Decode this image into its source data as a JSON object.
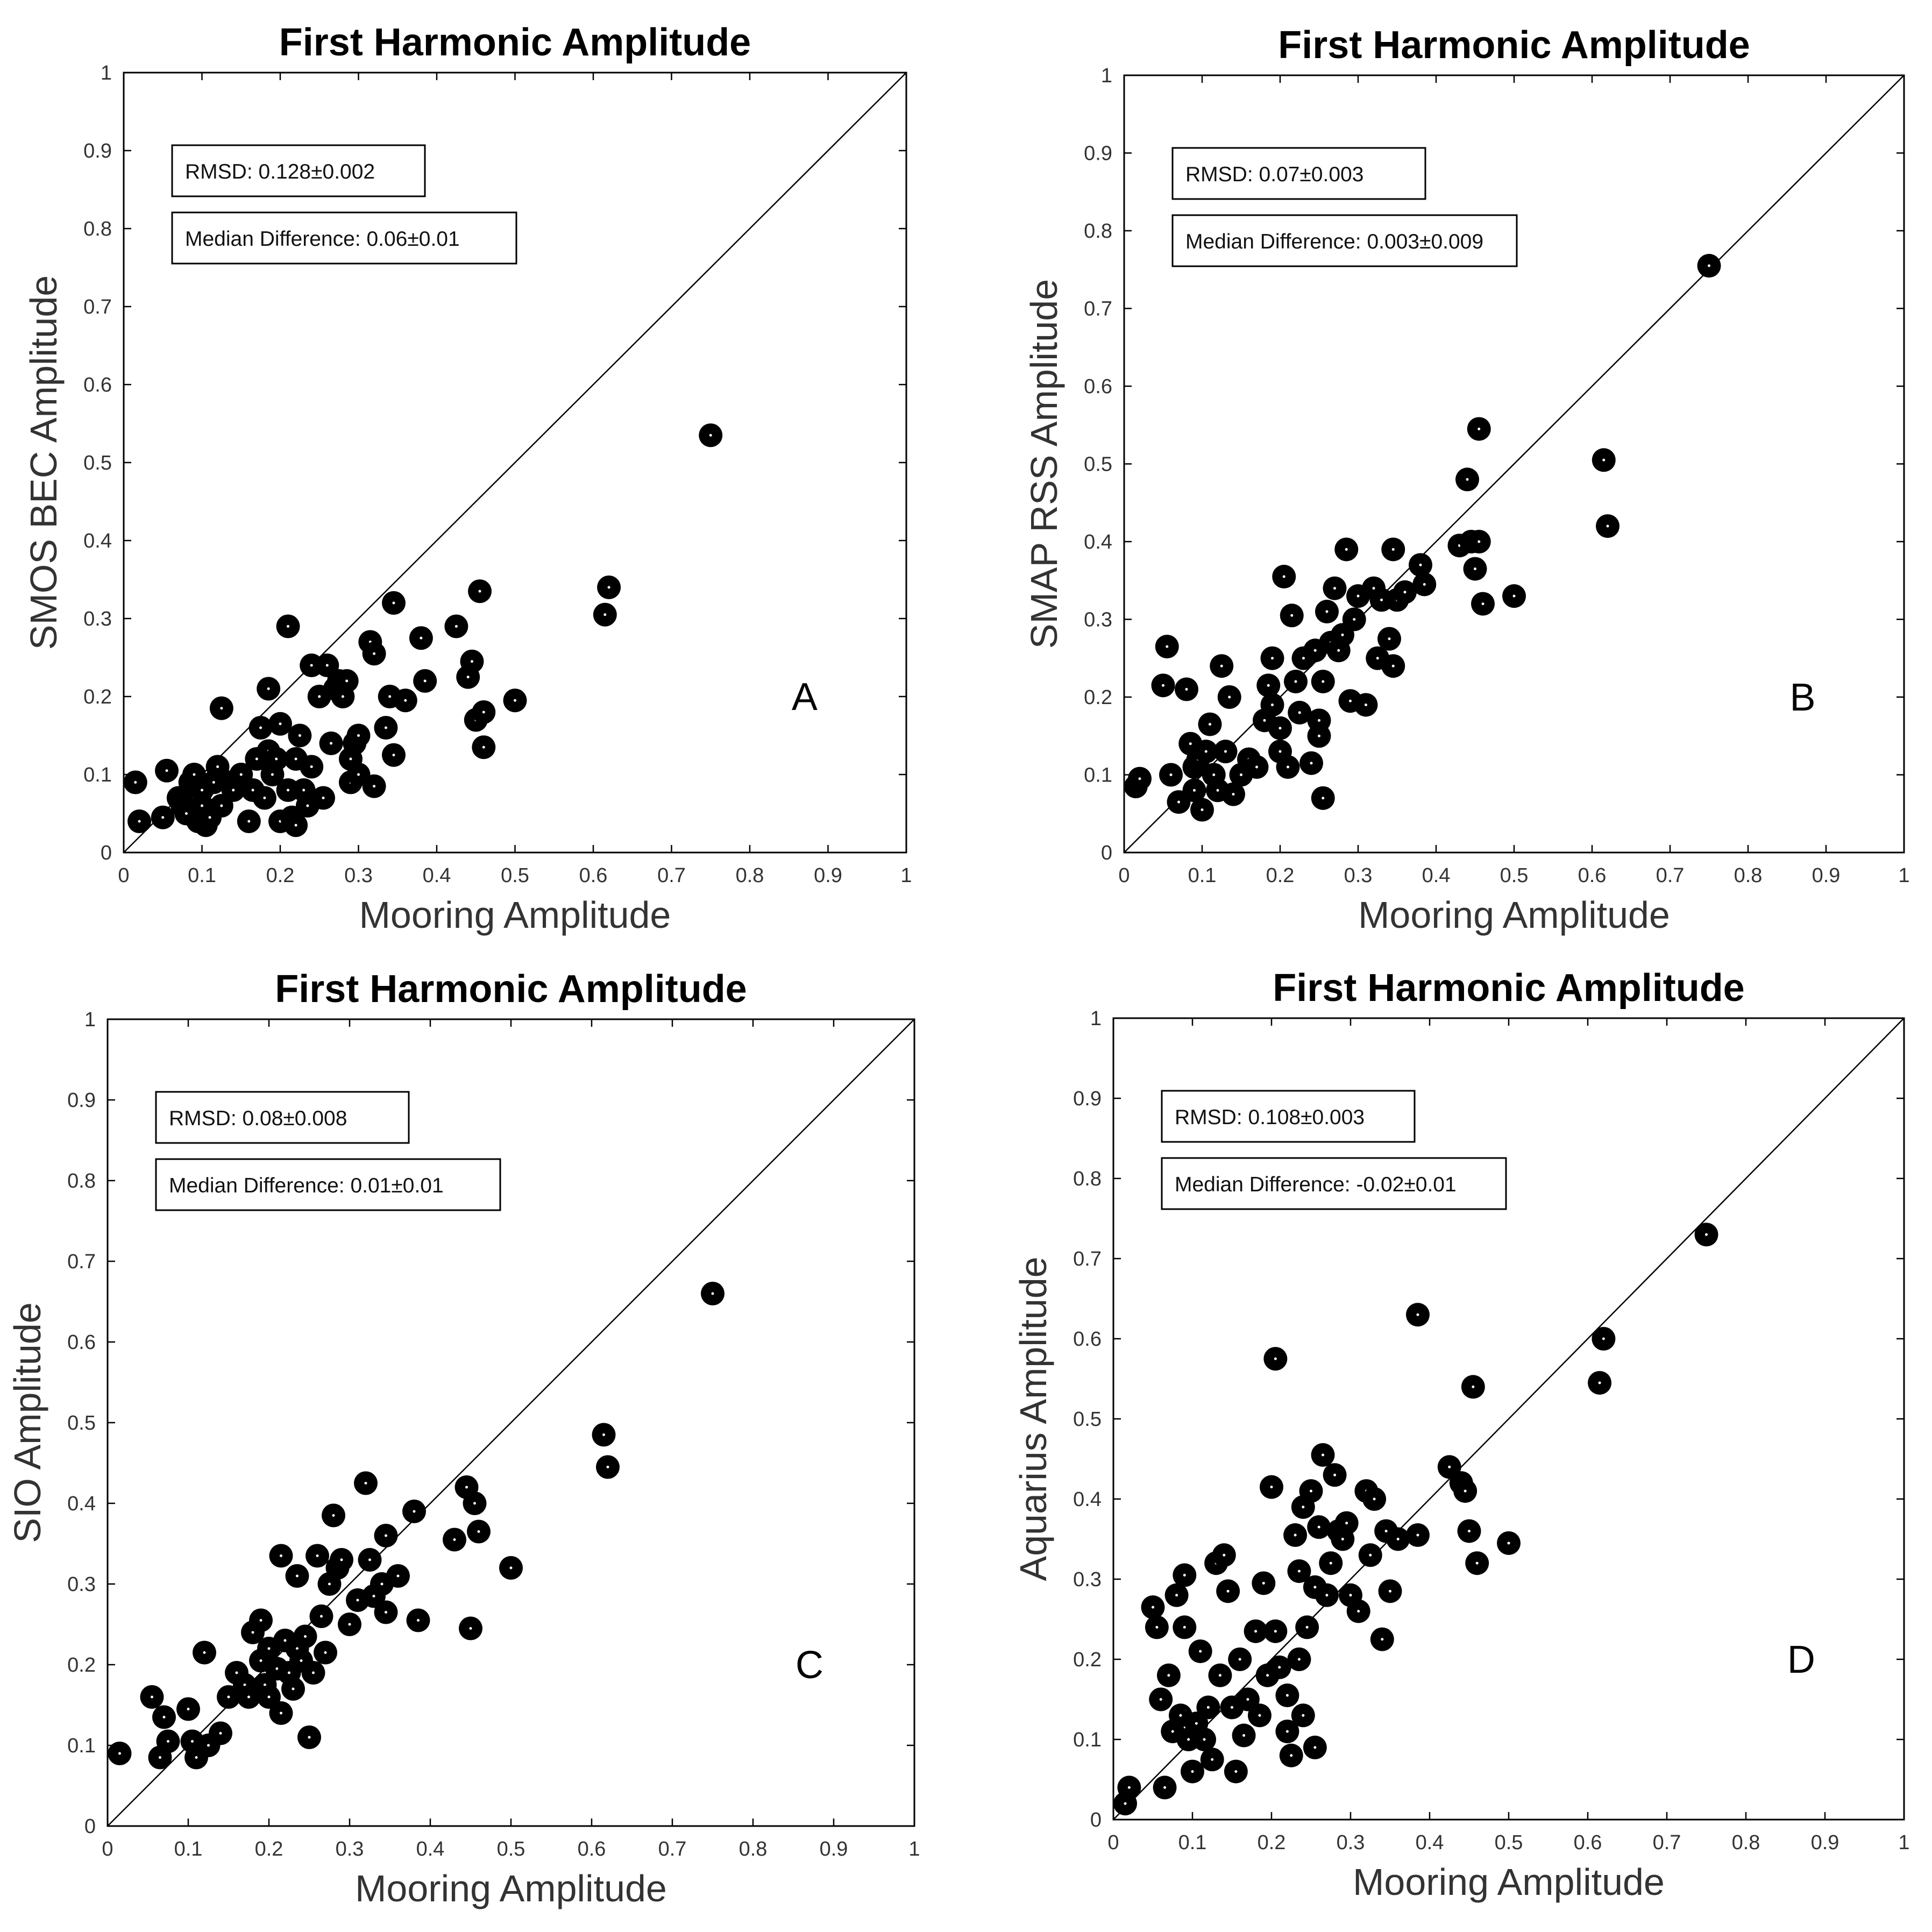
{
  "colors": {
    "marker": "#000000",
    "marker_center": "#ffffff",
    "axis": "#000000",
    "background": "#ffffff"
  },
  "chart_data": [
    {
      "type": "scatter",
      "panel_letter": "A",
      "title": "First Harmonic Amplitude",
      "xlabel": "Mooring Amplitude",
      "ylabel": "SMOS BEC Amplitude",
      "xlim": [
        0,
        1
      ],
      "ylim": [
        0,
        1
      ],
      "ticks": [
        "0",
        "0.1",
        "0.2",
        "0.3",
        "0.4",
        "0.5",
        "0.6",
        "0.7",
        "0.8",
        "0.9",
        "1"
      ],
      "stats": {
        "rmsd": "RMSD: 0.128±0.002",
        "median": "Median Difference: 0.06±0.01"
      },
      "reference_line": "y = x",
      "points": [
        [
          0.015,
          0.09
        ],
        [
          0.02,
          0.04
        ],
        [
          0.05,
          0.045
        ],
        [
          0.055,
          0.105
        ],
        [
          0.07,
          0.07
        ],
        [
          0.075,
          0.06
        ],
        [
          0.08,
          0.05
        ],
        [
          0.085,
          0.09
        ],
        [
          0.09,
          0.07
        ],
        [
          0.09,
          0.1
        ],
        [
          0.095,
          0.04
        ],
        [
          0.1,
          0.08
        ],
        [
          0.1,
          0.06
        ],
        [
          0.105,
          0.035
        ],
        [
          0.11,
          0.045
        ],
        [
          0.115,
          0.09
        ],
        [
          0.12,
          0.11
        ],
        [
          0.125,
          0.06
        ],
        [
          0.125,
          0.185
        ],
        [
          0.135,
          0.09
        ],
        [
          0.14,
          0.08
        ],
        [
          0.15,
          0.1
        ],
        [
          0.16,
          0.04
        ],
        [
          0.165,
          0.08
        ],
        [
          0.17,
          0.12
        ],
        [
          0.175,
          0.16
        ],
        [
          0.18,
          0.07
        ],
        [
          0.185,
          0.13
        ],
        [
          0.185,
          0.21
        ],
        [
          0.19,
          0.1
        ],
        [
          0.195,
          0.12
        ],
        [
          0.2,
          0.04
        ],
        [
          0.2,
          0.165
        ],
        [
          0.21,
          0.29
        ],
        [
          0.21,
          0.08
        ],
        [
          0.215,
          0.045
        ],
        [
          0.22,
          0.12
        ],
        [
          0.22,
          0.035
        ],
        [
          0.225,
          0.15
        ],
        [
          0.23,
          0.08
        ],
        [
          0.235,
          0.06
        ],
        [
          0.24,
          0.24
        ],
        [
          0.24,
          0.11
        ],
        [
          0.25,
          0.2
        ],
        [
          0.255,
          0.07
        ],
        [
          0.26,
          0.24
        ],
        [
          0.265,
          0.14
        ],
        [
          0.27,
          0.21
        ],
        [
          0.275,
          0.22
        ],
        [
          0.28,
          0.2
        ],
        [
          0.285,
          0.22
        ],
        [
          0.29,
          0.09
        ],
        [
          0.29,
          0.12
        ],
        [
          0.295,
          0.14
        ],
        [
          0.3,
          0.1
        ],
        [
          0.3,
          0.15
        ],
        [
          0.315,
          0.27
        ],
        [
          0.32,
          0.085
        ],
        [
          0.32,
          0.255
        ],
        [
          0.335,
          0.16
        ],
        [
          0.34,
          0.2
        ],
        [
          0.345,
          0.32
        ],
        [
          0.345,
          0.125
        ],
        [
          0.36,
          0.195
        ],
        [
          0.38,
          0.275
        ],
        [
          0.385,
          0.22
        ],
        [
          0.425,
          0.29
        ],
        [
          0.44,
          0.225
        ],
        [
          0.445,
          0.245
        ],
        [
          0.45,
          0.17
        ],
        [
          0.455,
          0.335
        ],
        [
          0.46,
          0.135
        ],
        [
          0.46,
          0.18
        ],
        [
          0.5,
          0.195
        ],
        [
          0.615,
          0.305
        ],
        [
          0.62,
          0.34
        ],
        [
          0.75,
          0.535
        ]
      ]
    },
    {
      "type": "scatter",
      "panel_letter": "B",
      "title": "First Harmonic Amplitude",
      "xlabel": "Mooring Amplitude",
      "ylabel": "SMAP RSS Amplitude",
      "xlim": [
        0,
        1
      ],
      "ylim": [
        0,
        1
      ],
      "ticks": [
        "0",
        "0.1",
        "0.2",
        "0.3",
        "0.4",
        "0.5",
        "0.6",
        "0.7",
        "0.8",
        "0.9",
        "1"
      ],
      "stats": {
        "rmsd": "RMSD: 0.07±0.003",
        "median": "Median Difference: 0.003±0.009"
      },
      "reference_line": "y = x",
      "points": [
        [
          0.015,
          0.085
        ],
        [
          0.02,
          0.095
        ],
        [
          0.05,
          0.215
        ],
        [
          0.055,
          0.265
        ],
        [
          0.06,
          0.1
        ],
        [
          0.07,
          0.065
        ],
        [
          0.08,
          0.21
        ],
        [
          0.085,
          0.14
        ],
        [
          0.09,
          0.11
        ],
        [
          0.09,
          0.08
        ],
        [
          0.095,
          0.12
        ],
        [
          0.1,
          0.055
        ],
        [
          0.105,
          0.13
        ],
        [
          0.11,
          0.165
        ],
        [
          0.115,
          0.1
        ],
        [
          0.12,
          0.08
        ],
        [
          0.125,
          0.24
        ],
        [
          0.13,
          0.13
        ],
        [
          0.135,
          0.2
        ],
        [
          0.14,
          0.075
        ],
        [
          0.15,
          0.1
        ],
        [
          0.16,
          0.12
        ],
        [
          0.17,
          0.11
        ],
        [
          0.18,
          0.17
        ],
        [
          0.185,
          0.215
        ],
        [
          0.19,
          0.19
        ],
        [
          0.19,
          0.25
        ],
        [
          0.2,
          0.16
        ],
        [
          0.2,
          0.13
        ],
        [
          0.205,
          0.355
        ],
        [
          0.21,
          0.11
        ],
        [
          0.215,
          0.305
        ],
        [
          0.22,
          0.22
        ],
        [
          0.225,
          0.18
        ],
        [
          0.23,
          0.25
        ],
        [
          0.24,
          0.115
        ],
        [
          0.245,
          0.26
        ],
        [
          0.25,
          0.17
        ],
        [
          0.25,
          0.15
        ],
        [
          0.255,
          0.07
        ],
        [
          0.255,
          0.22
        ],
        [
          0.26,
          0.31
        ],
        [
          0.265,
          0.27
        ],
        [
          0.27,
          0.34
        ],
        [
          0.275,
          0.26
        ],
        [
          0.28,
          0.28
        ],
        [
          0.285,
          0.39
        ],
        [
          0.29,
          0.195
        ],
        [
          0.295,
          0.3
        ],
        [
          0.3,
          0.33
        ],
        [
          0.31,
          0.19
        ],
        [
          0.32,
          0.34
        ],
        [
          0.325,
          0.25
        ],
        [
          0.33,
          0.325
        ],
        [
          0.34,
          0.275
        ],
        [
          0.345,
          0.39
        ],
        [
          0.345,
          0.24
        ],
        [
          0.35,
          0.325
        ],
        [
          0.36,
          0.335
        ],
        [
          0.38,
          0.37
        ],
        [
          0.385,
          0.345
        ],
        [
          0.43,
          0.395
        ],
        [
          0.44,
          0.48
        ],
        [
          0.445,
          0.4
        ],
        [
          0.45,
          0.365
        ],
        [
          0.455,
          0.545
        ],
        [
          0.455,
          0.4
        ],
        [
          0.46,
          0.32
        ],
        [
          0.5,
          0.33
        ],
        [
          0.615,
          0.505
        ],
        [
          0.62,
          0.42
        ],
        [
          0.75,
          0.755
        ]
      ]
    },
    {
      "type": "scatter",
      "panel_letter": "C",
      "title": "First Harmonic Amplitude",
      "xlabel": "Mooring Amplitude",
      "ylabel": "SIO Amplitude",
      "xlim": [
        0,
        1
      ],
      "ylim": [
        0,
        1
      ],
      "ticks": [
        "0",
        "0.1",
        "0.2",
        "0.3",
        "0.4",
        "0.5",
        "0.6",
        "0.7",
        "0.8",
        "0.9",
        "1"
      ],
      "stats": {
        "rmsd": "RMSD: 0.08±0.008",
        "median": "Median Difference: 0.01±0.01"
      },
      "reference_line": "y = x",
      "points": [
        [
          0.015,
          0.09
        ],
        [
          0.055,
          0.16
        ],
        [
          0.065,
          0.085
        ],
        [
          0.07,
          0.135
        ],
        [
          0.075,
          0.105
        ],
        [
          0.1,
          0.145
        ],
        [
          0.105,
          0.105
        ],
        [
          0.11,
          0.085
        ],
        [
          0.12,
          0.215
        ],
        [
          0.125,
          0.1
        ],
        [
          0.14,
          0.115
        ],
        [
          0.15,
          0.16
        ],
        [
          0.16,
          0.19
        ],
        [
          0.17,
          0.175
        ],
        [
          0.175,
          0.16
        ],
        [
          0.18,
          0.24
        ],
        [
          0.19,
          0.205
        ],
        [
          0.19,
          0.255
        ],
        [
          0.195,
          0.175
        ],
        [
          0.2,
          0.22
        ],
        [
          0.2,
          0.16
        ],
        [
          0.21,
          0.195
        ],
        [
          0.215,
          0.335
        ],
        [
          0.215,
          0.14
        ],
        [
          0.22,
          0.23
        ],
        [
          0.225,
          0.19
        ],
        [
          0.23,
          0.17
        ],
        [
          0.235,
          0.31
        ],
        [
          0.235,
          0.22
        ],
        [
          0.24,
          0.205
        ],
        [
          0.245,
          0.235
        ],
        [
          0.25,
          0.11
        ],
        [
          0.255,
          0.19
        ],
        [
          0.26,
          0.335
        ],
        [
          0.265,
          0.26
        ],
        [
          0.27,
          0.215
        ],
        [
          0.275,
          0.3
        ],
        [
          0.28,
          0.385
        ],
        [
          0.285,
          0.32
        ],
        [
          0.29,
          0.33
        ],
        [
          0.3,
          0.25
        ],
        [
          0.31,
          0.28
        ],
        [
          0.32,
          0.425
        ],
        [
          0.325,
          0.33
        ],
        [
          0.33,
          0.285
        ],
        [
          0.34,
          0.3
        ],
        [
          0.345,
          0.265
        ],
        [
          0.345,
          0.36
        ],
        [
          0.36,
          0.31
        ],
        [
          0.38,
          0.39
        ],
        [
          0.385,
          0.255
        ],
        [
          0.43,
          0.355
        ],
        [
          0.445,
          0.42
        ],
        [
          0.45,
          0.245
        ],
        [
          0.455,
          0.4
        ],
        [
          0.46,
          0.365
        ],
        [
          0.5,
          0.32
        ],
        [
          0.615,
          0.485
        ],
        [
          0.62,
          0.445
        ],
        [
          0.75,
          0.66
        ]
      ]
    },
    {
      "type": "scatter",
      "panel_letter": "D",
      "title": "First Harmonic Amplitude",
      "xlabel": "Mooring Amplitude",
      "ylabel": "Aquarius Amplitude",
      "xlim": [
        0,
        1
      ],
      "ylim": [
        0,
        1
      ],
      "ticks": [
        "0",
        "0.1",
        "0.2",
        "0.3",
        "0.4",
        "0.5",
        "0.6",
        "0.7",
        "0.8",
        "0.9",
        "1"
      ],
      "stats": {
        "rmsd": "RMSD: 0.108±0.003",
        "median": "Median Difference: -0.02±0.01"
      },
      "reference_line": "y = x",
      "points": [
        [
          0.015,
          0.02
        ],
        [
          0.02,
          0.04
        ],
        [
          0.05,
          0.265
        ],
        [
          0.055,
          0.24
        ],
        [
          0.06,
          0.15
        ],
        [
          0.065,
          0.04
        ],
        [
          0.07,
          0.18
        ],
        [
          0.075,
          0.11
        ],
        [
          0.08,
          0.28
        ],
        [
          0.085,
          0.13
        ],
        [
          0.09,
          0.305
        ],
        [
          0.09,
          0.24
        ],
        [
          0.095,
          0.1
        ],
        [
          0.1,
          0.06
        ],
        [
          0.105,
          0.12
        ],
        [
          0.11,
          0.21
        ],
        [
          0.115,
          0.1
        ],
        [
          0.12,
          0.14
        ],
        [
          0.125,
          0.075
        ],
        [
          0.13,
          0.32
        ],
        [
          0.135,
          0.18
        ],
        [
          0.14,
          0.33
        ],
        [
          0.145,
          0.285
        ],
        [
          0.15,
          0.14
        ],
        [
          0.155,
          0.06
        ],
        [
          0.16,
          0.2
        ],
        [
          0.165,
          0.105
        ],
        [
          0.17,
          0.15
        ],
        [
          0.18,
          0.235
        ],
        [
          0.185,
          0.13
        ],
        [
          0.19,
          0.295
        ],
        [
          0.195,
          0.18
        ],
        [
          0.2,
          0.415
        ],
        [
          0.205,
          0.575
        ],
        [
          0.205,
          0.235
        ],
        [
          0.21,
          0.19
        ],
        [
          0.22,
          0.155
        ],
        [
          0.22,
          0.11
        ],
        [
          0.225,
          0.08
        ],
        [
          0.23,
          0.355
        ],
        [
          0.235,
          0.31
        ],
        [
          0.235,
          0.2
        ],
        [
          0.24,
          0.39
        ],
        [
          0.24,
          0.13
        ],
        [
          0.245,
          0.24
        ],
        [
          0.25,
          0.41
        ],
        [
          0.255,
          0.29
        ],
        [
          0.255,
          0.09
        ],
        [
          0.26,
          0.365
        ],
        [
          0.265,
          0.455
        ],
        [
          0.27,
          0.28
        ],
        [
          0.275,
          0.32
        ],
        [
          0.28,
          0.43
        ],
        [
          0.285,
          0.36
        ],
        [
          0.29,
          0.35
        ],
        [
          0.295,
          0.37
        ],
        [
          0.3,
          0.28
        ],
        [
          0.31,
          0.26
        ],
        [
          0.32,
          0.41
        ],
        [
          0.325,
          0.33
        ],
        [
          0.33,
          0.4
        ],
        [
          0.34,
          0.225
        ],
        [
          0.345,
          0.36
        ],
        [
          0.35,
          0.285
        ],
        [
          0.36,
          0.35
        ],
        [
          0.385,
          0.63
        ],
        [
          0.385,
          0.355
        ],
        [
          0.425,
          0.44
        ],
        [
          0.44,
          0.42
        ],
        [
          0.445,
          0.41
        ],
        [
          0.45,
          0.36
        ],
        [
          0.455,
          0.54
        ],
        [
          0.46,
          0.32
        ],
        [
          0.5,
          0.345
        ],
        [
          0.615,
          0.545
        ],
        [
          0.62,
          0.6
        ],
        [
          0.75,
          0.73
        ]
      ]
    }
  ]
}
